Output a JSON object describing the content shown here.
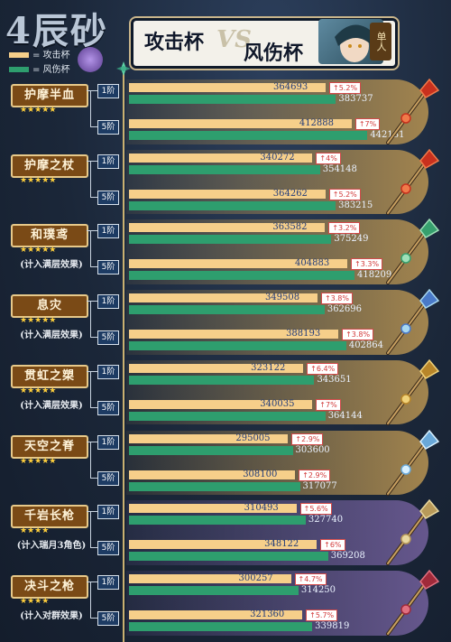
{
  "header": {
    "title": "4辰砂",
    "left_label": "攻击杯",
    "vs": "VS",
    "right_label": "风伤杯",
    "badge": "单人"
  },
  "legend": {
    "atk": "= 攻击杯",
    "anemo": "= 风伤杯"
  },
  "colors": {
    "atk_bar": "#f6cf8a",
    "anemo_bar": "#2e9e6e",
    "panel_gold": "#a9894f",
    "panel_purple": "#6a5a92"
  },
  "tier_labels": {
    "r1": "1阶",
    "r5": "5阶"
  },
  "chart_data": {
    "type": "bar",
    "orientation": "horizontal",
    "title": "4辰砂",
    "series_names": [
      "攻击杯",
      "风伤杯"
    ],
    "weapons": [
      {
        "name": "护摩半血",
        "stars": "★★★★★",
        "note": "",
        "rows": [
          {
            "tier": "1阶",
            "atk": 364693,
            "anemo": 383737,
            "pct": "↑5.2%"
          },
          {
            "tier": "5阶",
            "atk": 412888,
            "anemo": 442131,
            "pct": "↑7%"
          }
        ]
      },
      {
        "name": "护摩之杖",
        "stars": "★★★★★",
        "note": "",
        "rows": [
          {
            "tier": "1阶",
            "atk": 340272,
            "anemo": 354148,
            "pct": "↑4%"
          },
          {
            "tier": "5阶",
            "atk": 364262,
            "anemo": 383215,
            "pct": "↑5.2%"
          }
        ]
      },
      {
        "name": "和璞鸢",
        "stars": "★★★★★",
        "note": "(计入满层效果)",
        "rows": [
          {
            "tier": "1阶",
            "atk": 363582,
            "anemo": 375249,
            "pct": "↑3.2%"
          },
          {
            "tier": "5阶",
            "atk": 404883,
            "anemo": 418209,
            "pct": "↑3.3%"
          }
        ]
      },
      {
        "name": "息灾",
        "stars": "★★★★★",
        "note": "(计入满层效果)",
        "rows": [
          {
            "tier": "1阶",
            "atk": 349508,
            "anemo": 362696,
            "pct": "↑3.8%"
          },
          {
            "tier": "5阶",
            "atk": 388193,
            "anemo": 402864,
            "pct": "↑3.8%"
          }
        ]
      },
      {
        "name": "贯虹之槊",
        "stars": "★★★★★",
        "note": "(计入满层效果)",
        "rows": [
          {
            "tier": "1阶",
            "atk": 323122,
            "anemo": 343651,
            "pct": "↑6.4%"
          },
          {
            "tier": "5阶",
            "atk": 340035,
            "anemo": 364144,
            "pct": "↑7%"
          }
        ]
      },
      {
        "name": "天空之脊",
        "stars": "★★★★★",
        "note": "",
        "rows": [
          {
            "tier": "1阶",
            "atk": 295005,
            "anemo": 303600,
            "pct": "↑2.9%"
          },
          {
            "tier": "5阶",
            "atk": 308100,
            "anemo": 317077,
            "pct": "↑2.9%"
          }
        ]
      },
      {
        "name": "千岩长枪",
        "stars": "★★★★",
        "note": "(计入瑞月3角色)",
        "rows": [
          {
            "tier": "1阶",
            "atk": 310493,
            "anemo": 327740,
            "pct": "↑5.6%"
          },
          {
            "tier": "5阶",
            "atk": 348122,
            "anemo": 369208,
            "pct": "↑6%"
          }
        ]
      },
      {
        "name": "决斗之枪",
        "stars": "★★★★",
        "note": "(计入对群效果)",
        "rows": [
          {
            "tier": "1阶",
            "atk": 300257,
            "anemo": 314250,
            "pct": "↑4.7%"
          },
          {
            "tier": "5阶",
            "atk": 321360,
            "anemo": 339819,
            "pct": "↑5.7%"
          }
        ]
      }
    ]
  }
}
